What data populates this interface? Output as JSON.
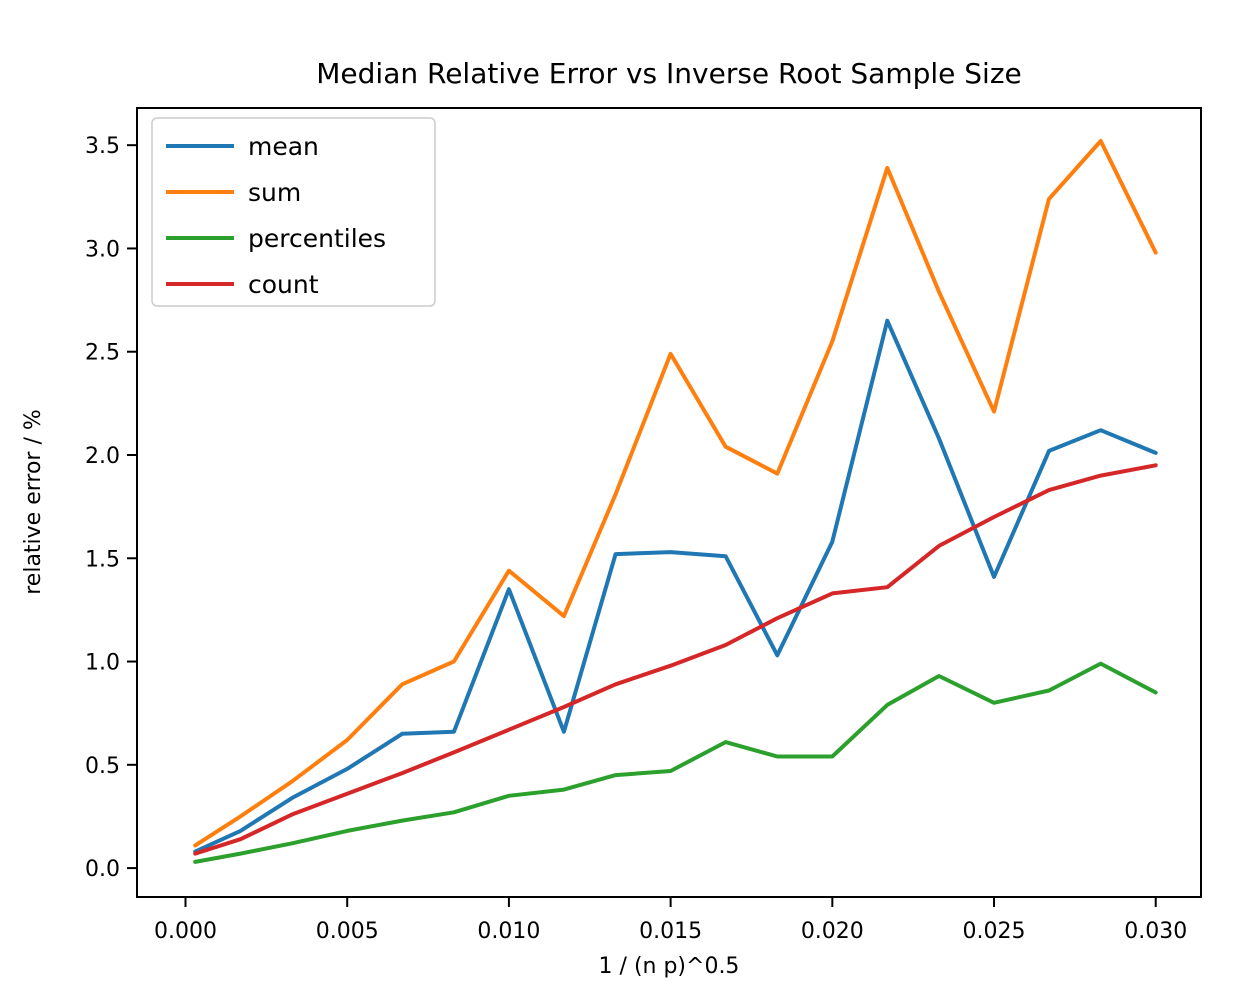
{
  "figure": {
    "background": "#ffffff",
    "text_color": "#000000",
    "spine_color": "#000000"
  },
  "chart_data": {
    "type": "line",
    "title": "Median Relative Error vs Inverse Root Sample Size",
    "xlabel": "1 / (n p)^0.5",
    "ylabel": "relative error / %",
    "grid": false,
    "legend_position": "upper left",
    "xlim": [
      -0.0015,
      0.0314
    ],
    "ylim": [
      -0.14,
      3.68
    ],
    "xticks": {
      "values": [
        0.0,
        0.005,
        0.01,
        0.015,
        0.02,
        0.025,
        0.03
      ],
      "labels": [
        "0.000",
        "0.005",
        "0.010",
        "0.015",
        "0.020",
        "0.025",
        "0.030"
      ]
    },
    "yticks": {
      "values": [
        0.0,
        0.5,
        1.0,
        1.5,
        2.0,
        2.5,
        3.0,
        3.5
      ],
      "labels": [
        "0.0",
        "0.5",
        "1.0",
        "1.5",
        "2.0",
        "2.5",
        "3.0",
        "3.5"
      ]
    },
    "x": [
      0.0003,
      0.0017,
      0.0033,
      0.005,
      0.0067,
      0.0083,
      0.01,
      0.0117,
      0.0133,
      0.015,
      0.0167,
      0.0183,
      0.02,
      0.0217,
      0.0233,
      0.025,
      0.0267,
      0.0283,
      0.03
    ],
    "series": [
      {
        "name": "mean",
        "color": "#1f77b4",
        "values": [
          0.08,
          0.18,
          0.34,
          0.48,
          0.65,
          0.66,
          1.35,
          0.66,
          1.52,
          1.53,
          1.51,
          1.03,
          1.58,
          2.65,
          2.08,
          1.41,
          2.02,
          2.12,
          2.01
        ]
      },
      {
        "name": "sum",
        "color": "#ff7f0e",
        "values": [
          0.11,
          0.25,
          0.42,
          0.62,
          0.89,
          1.0,
          1.44,
          1.22,
          1.81,
          2.49,
          2.04,
          1.91,
          2.55,
          3.39,
          2.79,
          2.21,
          3.24,
          3.52,
          2.98
        ]
      },
      {
        "name": "percentiles",
        "color": "#2ca02c",
        "values": [
          0.03,
          0.07,
          0.12,
          0.18,
          0.23,
          0.27,
          0.35,
          0.38,
          0.45,
          0.47,
          0.61,
          0.54,
          0.54,
          0.79,
          0.93,
          0.8,
          0.86,
          0.99,
          0.85
        ]
      },
      {
        "name": "count",
        "color": "#d62728",
        "values": [
          0.07,
          0.14,
          0.26,
          0.36,
          0.46,
          0.56,
          0.67,
          0.78,
          0.89,
          0.98,
          1.08,
          1.21,
          1.33,
          1.36,
          1.56,
          1.7,
          1.83,
          1.9,
          1.95
        ]
      }
    ]
  }
}
